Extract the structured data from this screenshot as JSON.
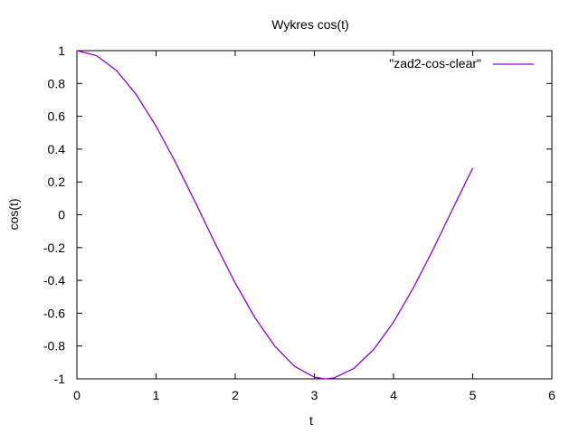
{
  "chart_data": {
    "type": "line",
    "title": "Wykres cos(t)",
    "xlabel": "t",
    "ylabel": "cos(t)",
    "xlim": [
      0,
      6
    ],
    "ylim": [
      -1,
      1
    ],
    "x_ticks": [
      0,
      1,
      2,
      3,
      4,
      5,
      6
    ],
    "x_tick_labels": [
      "0",
      "1",
      "2",
      "3",
      "4",
      "5",
      "6"
    ],
    "y_ticks": [
      -1,
      -0.8,
      -0.6,
      -0.4,
      -0.2,
      0,
      0.2,
      0.4,
      0.6,
      0.8,
      1
    ],
    "y_tick_labels": [
      "-1",
      "-0.8",
      "-0.6",
      "-0.4",
      "-0.2",
      "0",
      "0.2",
      "0.4",
      "0.6",
      "0.8",
      "1"
    ],
    "grid": false,
    "legend_position": "top-right",
    "series": [
      {
        "name": "\"zad2-cos-clear\"",
        "color": "#9400d3",
        "x": [
          0,
          0.25,
          0.5,
          0.75,
          1,
          1.25,
          1.5,
          1.75,
          2,
          2.25,
          2.5,
          2.75,
          3,
          3.14,
          3.25,
          3.5,
          3.75,
          4,
          4.25,
          4.5,
          4.75,
          5
        ],
        "y": [
          1,
          0.969,
          0.878,
          0.732,
          0.54,
          0.315,
          0.071,
          -0.178,
          -0.416,
          -0.628,
          -0.801,
          -0.924,
          -0.99,
          -1,
          -0.994,
          -0.936,
          -0.821,
          -0.654,
          -0.446,
          -0.211,
          0.038,
          0.284
        ]
      }
    ]
  }
}
